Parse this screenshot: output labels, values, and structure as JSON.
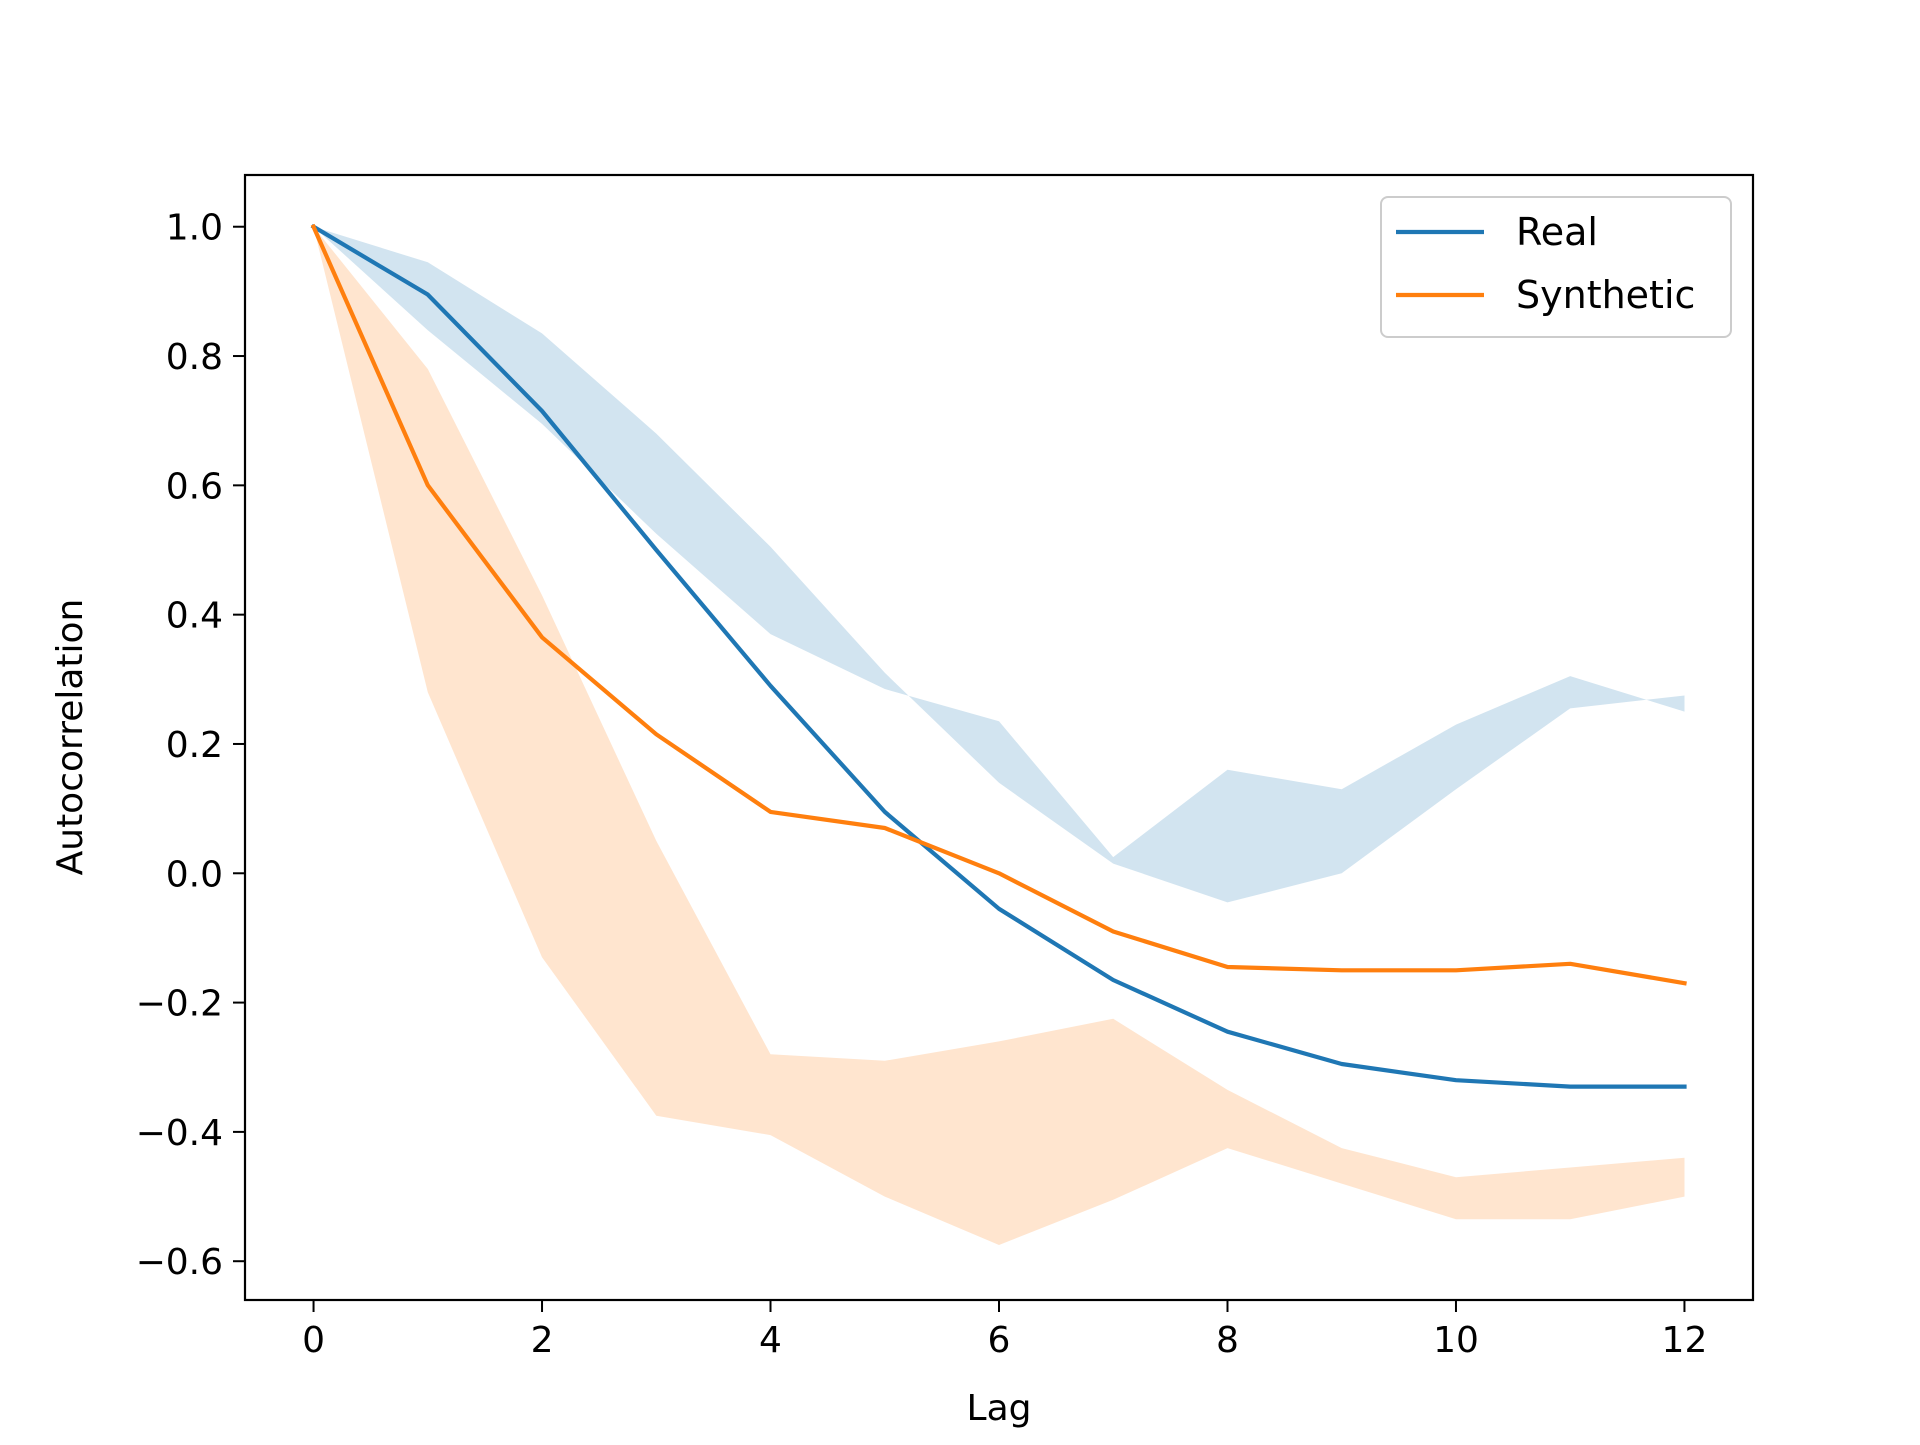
{
  "chart_data": {
    "type": "line",
    "title": "",
    "xlabel": "Lag",
    "ylabel": "Autocorrelation",
    "xlim": [
      -0.6,
      12.6
    ],
    "ylim": [
      -0.66,
      1.08
    ],
    "xticks": [
      0,
      2,
      4,
      6,
      8,
      10,
      12
    ],
    "xtick_labels": [
      "0",
      "2",
      "4",
      "6",
      "8",
      "10",
      "12"
    ],
    "yticks": [
      -0.6,
      -0.4,
      -0.2,
      0.0,
      0.2,
      0.4,
      0.6,
      0.8,
      1.0
    ],
    "ytick_labels": [
      "−0.6",
      "−0.4",
      "−0.2",
      "0.0",
      "0.2",
      "0.4",
      "0.6",
      "0.8",
      "1.0"
    ],
    "grid": false,
    "legend_position": "top-right",
    "x": [
      0,
      1,
      2,
      3,
      4,
      5,
      6,
      7,
      8,
      9,
      10,
      11,
      12
    ],
    "series": [
      {
        "name": "Real",
        "color": "#1f77b4",
        "values": [
          1.0,
          0.895,
          0.715,
          0.5,
          0.29,
          0.095,
          -0.055,
          -0.165,
          -0.245,
          -0.295,
          -0.32,
          -0.33,
          -0.33
        ],
        "band_upper": [
          1.0,
          0.945,
          0.835,
          0.68,
          0.505,
          0.31,
          0.14,
          0.015,
          -0.045,
          0.0,
          0.13,
          0.255,
          0.275
        ],
        "band_lower": [
          1.0,
          0.84,
          0.695,
          0.525,
          0.37,
          0.285,
          0.235,
          0.025,
          0.16,
          0.13,
          0.23,
          0.305,
          0.25
        ]
      },
      {
        "name": "Synthetic",
        "color": "#ff7f0e",
        "values": [
          1.0,
          0.6,
          0.365,
          0.215,
          0.095,
          0.07,
          0.0,
          -0.09,
          -0.145,
          -0.15,
          -0.15,
          -0.14,
          -0.17
        ],
        "band_upper": [
          1.0,
          0.78,
          0.43,
          0.05,
          -0.28,
          -0.29,
          -0.26,
          -0.225,
          -0.335,
          -0.425,
          -0.47,
          -0.455,
          -0.44
        ],
        "band_lower": [
          1.0,
          0.28,
          -0.13,
          -0.375,
          -0.405,
          -0.5,
          -0.575,
          -0.505,
          -0.425,
          -0.48,
          -0.535,
          -0.535,
          -0.5
        ]
      }
    ]
  }
}
